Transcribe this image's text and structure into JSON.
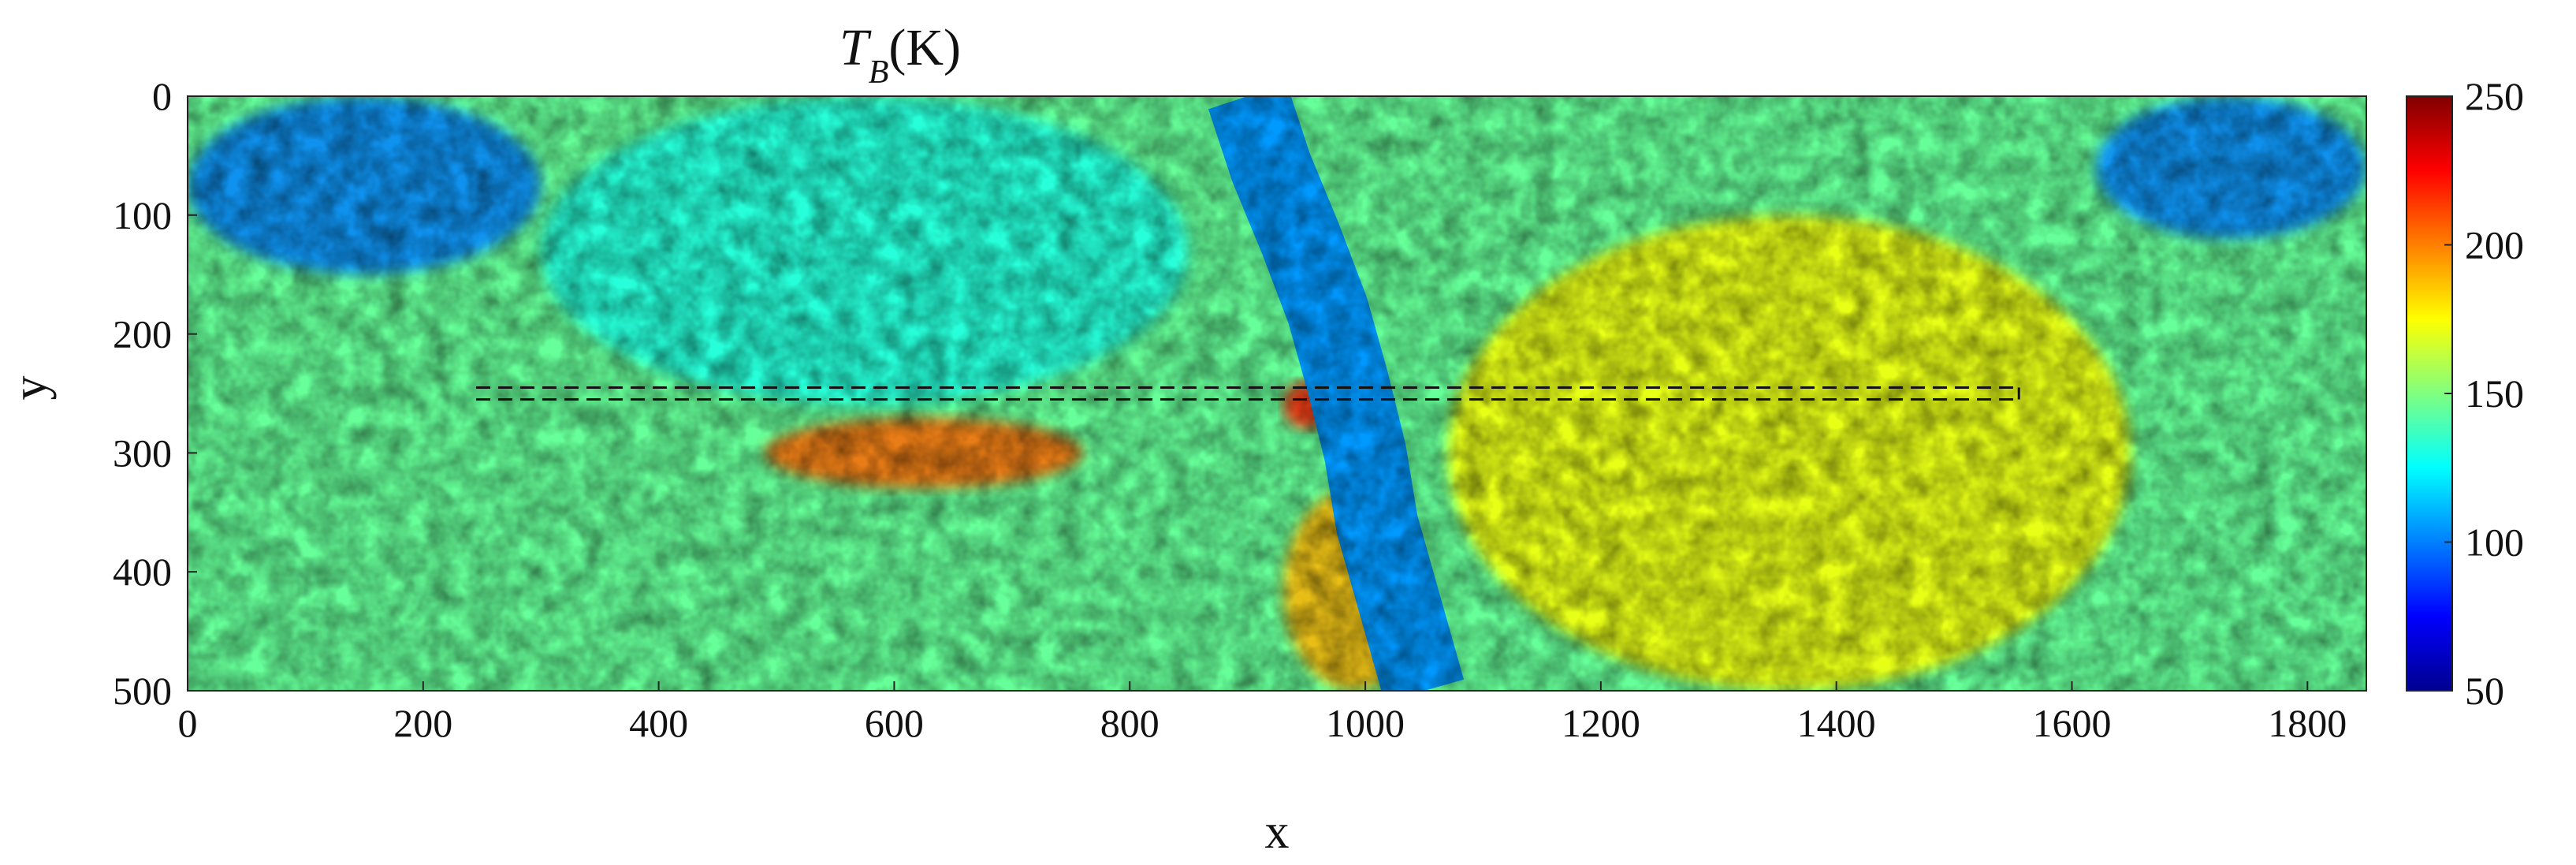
{
  "chart_data": {
    "type": "heatmap",
    "title": "T_B(K)",
    "title_parts": {
      "main": "T",
      "sub": "B",
      "rest": "(K)"
    },
    "xlabel": "x",
    "ylabel": "y",
    "xlim": [
      0,
      1850
    ],
    "ylim": [
      0,
      500
    ],
    "y_reversed": true,
    "x_ticks": [
      0,
      200,
      400,
      600,
      800,
      1000,
      1200,
      1400,
      1600,
      1800
    ],
    "x_tick_labels": [
      "0",
      "200",
      "400",
      "600",
      "800",
      "1000",
      "1200",
      "1400",
      "1600",
      "1800"
    ],
    "y_ticks": [
      0,
      100,
      200,
      300,
      400,
      500
    ],
    "y_tick_labels": [
      "0",
      "100",
      "200",
      "300",
      "400",
      "500"
    ],
    "colorbar": {
      "colormap": "jet",
      "range": [
        50,
        250
      ],
      "ticks": [
        50,
        100,
        150,
        200,
        250
      ],
      "tick_labels": [
        "50",
        "100",
        "150",
        "200",
        "250"
      ]
    },
    "background_level": 145,
    "features": [
      {
        "name": "river",
        "level": 105,
        "path_x": [
          900,
          920,
          945,
          968,
          985,
          1000,
          1010,
          1030,
          1050
        ],
        "path_y": [
          0,
          60,
          120,
          180,
          240,
          300,
          360,
          430,
          500
        ],
        "width": 70
      },
      {
        "name": "lake-top-left",
        "level": 100,
        "x": [
          0,
          300
        ],
        "y": [
          0,
          150
        ]
      },
      {
        "name": "hot-field-west",
        "level": 205,
        "x": [
          490,
          760
        ],
        "y": [
          270,
          330
        ]
      },
      {
        "name": "hot-island",
        "level": 190,
        "x": [
          930,
          1050
        ],
        "y": [
          330,
          500
        ]
      },
      {
        "name": "hot-spot",
        "level": 220,
        "x": [
          930,
          970
        ],
        "y": [
          240,
          280
        ]
      },
      {
        "name": "warm-east-region",
        "level": 175,
        "x": [
          1070,
          1650
        ],
        "y": [
          100,
          500
        ]
      },
      {
        "name": "cool-northwest",
        "level": 130,
        "x": [
          300,
          850
        ],
        "y": [
          0,
          260
        ]
      },
      {
        "name": "sea-top-right",
        "level": 100,
        "x": [
          1620,
          1850
        ],
        "y": [
          0,
          120
        ]
      }
    ],
    "annotations": [
      {
        "type": "dashed-line",
        "x": [
          245,
          1555
        ],
        "y": 245
      },
      {
        "type": "dashed-line",
        "x": [
          245,
          1555
        ],
        "y": 255
      }
    ]
  }
}
